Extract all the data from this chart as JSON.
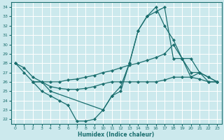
{
  "bg_color": "#cce9ed",
  "grid_color": "#ffffff",
  "line_color": "#1a6e6e",
  "xlabel": "Humidex (Indice chaleur)",
  "ylim": [
    21.5,
    34.5
  ],
  "xlim": [
    -0.5,
    23.5
  ],
  "yticks": [
    22,
    23,
    24,
    25,
    26,
    27,
    28,
    29,
    30,
    31,
    32,
    33,
    34
  ],
  "xticks": [
    0,
    1,
    2,
    3,
    4,
    5,
    6,
    7,
    8,
    9,
    10,
    11,
    12,
    13,
    14,
    15,
    16,
    17,
    18,
    19,
    20,
    21,
    22,
    23
  ],
  "lines": [
    {
      "x": [
        0,
        1,
        2,
        3,
        4,
        5,
        6,
        7,
        8,
        9,
        10,
        11,
        12,
        13,
        14,
        15,
        16,
        17,
        18,
        19,
        20,
        21,
        22,
        23
      ],
      "y": [
        28,
        27,
        26,
        25,
        24.5,
        24,
        23.5,
        21.8,
        21.8,
        22,
        23,
        24.5,
        25,
        28,
        31.5,
        33,
        33.5,
        34,
        28.5,
        28.5,
        26.5,
        27,
        26,
        26
      ]
    },
    {
      "x": [
        0,
        1,
        2,
        3,
        4,
        5,
        6,
        7,
        8,
        9,
        10,
        11,
        12,
        13,
        14,
        15,
        16,
        17,
        18,
        19,
        20,
        21,
        22,
        23
      ],
      "y": [
        28,
        27.5,
        26.5,
        26,
        26,
        26,
        26.2,
        26.3,
        26.5,
        26.7,
        27,
        27.2,
        27.5,
        27.8,
        28,
        28.3,
        28.6,
        29,
        30,
        28.5,
        27,
        27,
        26.5,
        26
      ]
    },
    {
      "x": [
        2,
        3,
        4,
        5,
        6,
        7,
        8,
        9,
        10,
        11,
        12,
        13,
        14,
        15,
        16,
        17,
        18,
        19,
        20,
        21,
        22,
        23
      ],
      "y": [
        26,
        26,
        25.5,
        25.3,
        25.2,
        25.2,
        25.3,
        25.5,
        25.8,
        26,
        26,
        26,
        26,
        26,
        26,
        26.2,
        26.5,
        26.5,
        26.5,
        26.3,
        26,
        26
      ]
    },
    {
      "x": [
        2,
        3,
        4,
        10,
        11,
        12,
        13,
        14,
        15,
        16,
        17,
        18,
        19,
        20,
        21,
        22,
        23
      ],
      "y": [
        26,
        26,
        25,
        23,
        24.5,
        25.5,
        28,
        31.5,
        33,
        34,
        32,
        30.5,
        28.5,
        28.5,
        27,
        26.5,
        26
      ]
    }
  ]
}
